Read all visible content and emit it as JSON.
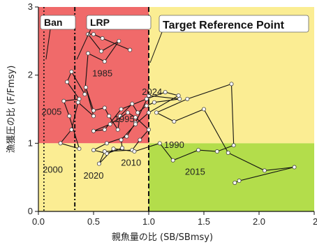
{
  "chart_data": {
    "type": "scatter",
    "xlabel": "親魚量の比 (SB/SBmsy)",
    "ylabel": "漁獲圧の比 (F/Fmsy)",
    "xlim": [
      0,
      2.5
    ],
    "ylim": [
      0,
      3
    ],
    "x_ticks": [
      "0.0",
      "0.5",
      "1.0",
      "1.5",
      "2.0",
      "2."
    ],
    "y_ticks": [
      "0",
      "1",
      "2",
      "3"
    ],
    "zones": [
      {
        "region": "low-biomass-high-fishing",
        "color": "#f06a6a"
      },
      {
        "region": "high-biomass-high-fishing",
        "color": "#fbed93"
      },
      {
        "region": "low-biomass-low-fishing",
        "color": "#fbed93"
      },
      {
        "region": "high-biomass-low-fishing",
        "color": "#b3dd4b"
      }
    ],
    "reference_lines": [
      {
        "label": "Ban",
        "x": 0.05,
        "style": "dotted"
      },
      {
        "label": "LRP",
        "x": 0.33,
        "style": "dash-dot"
      },
      {
        "label": "Target Reference Point",
        "x": 1.0,
        "style": "dashed"
      }
    ],
    "trajectory": [
      [
        0.83,
        2.37
      ],
      [
        0.58,
        2.54
      ],
      [
        0.5,
        2.6
      ],
      [
        0.45,
        2.6
      ],
      [
        0.57,
        2.35
      ],
      [
        0.73,
        2.5
      ],
      [
        0.6,
        2.2
      ],
      [
        0.45,
        2.32
      ],
      [
        0.42,
        1.72
      ],
      [
        0.3,
        2.05
      ],
      [
        0.26,
        1.9
      ],
      [
        0.37,
        1.65
      ],
      [
        0.23,
        1.62
      ],
      [
        0.28,
        1.4
      ],
      [
        0.37,
        0.92
      ],
      [
        0.2,
        1.0
      ],
      [
        0.3,
        1.2
      ],
      [
        0.36,
        1.6
      ],
      [
        0.5,
        1.4
      ],
      [
        0.43,
        1.82
      ],
      [
        0.5,
        1.48
      ],
      [
        0.6,
        1.52
      ],
      [
        0.64,
        1.4
      ],
      [
        0.72,
        1.2
      ],
      [
        0.74,
        1.4
      ],
      [
        0.85,
        1.58
      ],
      [
        0.9,
        1.45
      ],
      [
        0.98,
        1.55
      ],
      [
        1.05,
        1.6
      ],
      [
        1.28,
        1.65
      ],
      [
        1.0,
        1.7
      ],
      [
        0.88,
        1.3
      ],
      [
        0.8,
        1.1
      ],
      [
        0.62,
        1.0
      ],
      [
        0.5,
        0.9
      ],
      [
        0.62,
        0.85
      ],
      [
        0.76,
        0.93
      ],
      [
        0.75,
        1.05
      ],
      [
        0.88,
        1.28
      ],
      [
        1.0,
        1.45
      ],
      [
        1.27,
        1.7
      ],
      [
        1.15,
        1.75
      ],
      [
        0.98,
        1.65
      ],
      [
        0.75,
        1.5
      ],
      [
        0.6,
        1.2
      ],
      [
        0.5,
        1.18
      ],
      [
        0.65,
        1.28
      ],
      [
        0.81,
        1.45
      ],
      [
        0.88,
        1.38
      ],
      [
        1.0,
        1.2
      ],
      [
        0.92,
        1.05
      ],
      [
        0.85,
        0.9
      ],
      [
        0.6,
        0.88
      ],
      [
        0.55,
        0.7
      ],
      [
        0.68,
        0.92
      ],
      [
        0.87,
        0.88
      ],
      [
        1.1,
        1.0
      ],
      [
        1.22,
        0.75
      ],
      [
        1.45,
        0.9
      ],
      [
        1.62,
        0.88
      ],
      [
        1.77,
        0.97
      ],
      [
        1.75,
        1.87
      ],
      [
        1.35,
        1.65
      ],
      [
        1.07,
        1.45
      ],
      [
        1.23,
        1.32
      ],
      [
        1.5,
        1.5
      ],
      [
        1.72,
        0.86
      ],
      [
        2.05,
        0.6
      ],
      [
        2.32,
        0.65
      ],
      [
        1.82,
        0.45
      ],
      [
        1.78,
        0.42
      ]
    ],
    "year_labels": [
      {
        "text": "1985",
        "x": 0.58,
        "y": 1.98
      },
      {
        "text": "2005",
        "x": 0.12,
        "y": 1.42
      },
      {
        "text": "2024",
        "x": 1.03,
        "y": 1.71
      },
      {
        "text": "1995",
        "x": 0.78,
        "y": 1.31
      },
      {
        "text": "1990",
        "x": 1.23,
        "y": 0.93
      },
      {
        "text": "2000",
        "x": 0.13,
        "y": 0.57
      },
      {
        "text": "2010",
        "x": 0.84,
        "y": 0.67
      },
      {
        "text": "2020",
        "x": 0.5,
        "y": 0.48
      },
      {
        "text": "2015",
        "x": 1.42,
        "y": 0.54
      }
    ]
  }
}
